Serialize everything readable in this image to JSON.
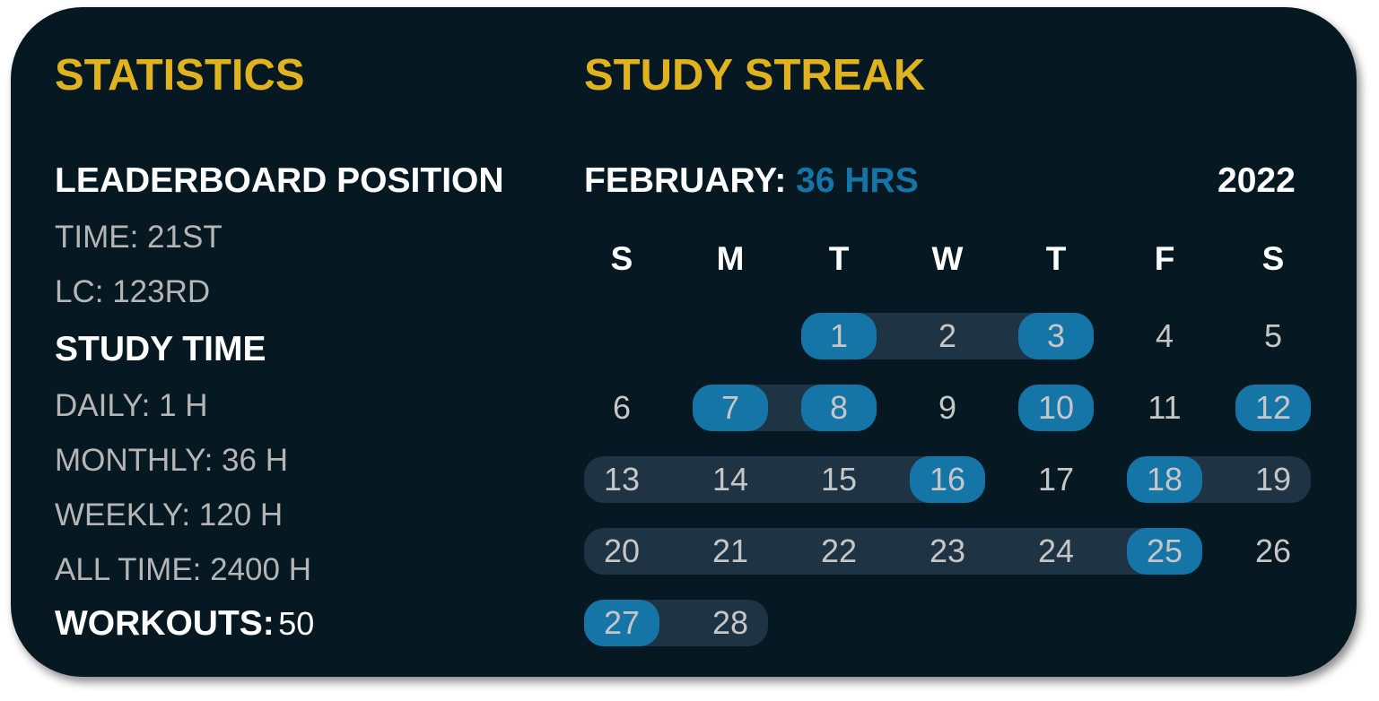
{
  "statistics": {
    "title": "STATISTICS",
    "leaderboard_heading": "LEADERBOARD POSITION",
    "leaderboard": [
      "TIME: 21ST",
      "LC: 123RD"
    ],
    "study_time_heading": "STUDY TIME",
    "study_time": [
      "DAILY: 1 H",
      "MONTHLY: 36 H",
      "WEEKLY: 120 H",
      "ALL TIME: 2400 H"
    ],
    "workouts_label": "WORKOUTS:",
    "workouts_value": "50"
  },
  "streak": {
    "title": "STUDY STREAK",
    "month_label": "FEBRUARY:",
    "month_hours": "36 HRS",
    "year": "2022",
    "weekdays": [
      "S",
      "M",
      "T",
      "W",
      "T",
      "F",
      "S"
    ],
    "first_weekday_index": 2,
    "days_in_month": 28,
    "highlighted_days": [
      1,
      3,
      7,
      8,
      10,
      12,
      16,
      18,
      25,
      27
    ],
    "streak_ranges": [
      [
        1,
        3
      ],
      [
        7,
        8
      ],
      [
        13,
        16
      ],
      [
        18,
        19
      ],
      [
        20,
        25
      ],
      [
        27,
        28
      ]
    ]
  },
  "colors": {
    "background": "#061922",
    "title": "#dfb21e",
    "accent_blue": "#1575a6",
    "streak_band": "#1e3343"
  }
}
